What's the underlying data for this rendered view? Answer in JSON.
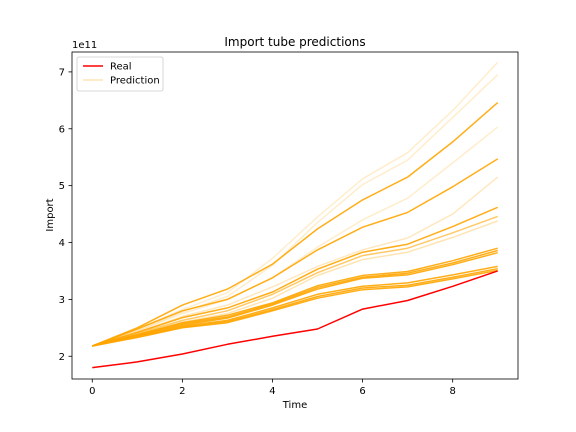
{
  "chart_data": {
    "type": "line",
    "title": "Import tube predictions",
    "xlabel": "Time",
    "ylabel": "Import",
    "y_offset_label": "1e11",
    "x": [
      0,
      1,
      2,
      3,
      4,
      5,
      6,
      7,
      8,
      9
    ],
    "xlim": [
      -0.45,
      9.45
    ],
    "ylim": [
      1.6,
      7.35
    ],
    "xticks": [
      0,
      2,
      4,
      6,
      8
    ],
    "xtick_labels": [
      "0",
      "2",
      "4",
      "6",
      "8"
    ],
    "yticks": [
      2,
      3,
      4,
      5,
      6,
      7
    ],
    "ytick_labels": [
      "2",
      "3",
      "4",
      "5",
      "6",
      "7"
    ],
    "grid": false,
    "legend_position": "top-left",
    "legend": [
      {
        "name": "Real",
        "color": "#ff0000"
      },
      {
        "name": "Prediction",
        "color": "#ffa500"
      }
    ],
    "real": {
      "name": "Real",
      "color": "#ff0000",
      "values": [
        1.8,
        1.9,
        2.04,
        2.21,
        2.35,
        2.48,
        2.83,
        2.98,
        3.23,
        3.5
      ]
    },
    "prediction_color": "#ffa500",
    "predictions": [
      {
        "values": [
          2.18,
          2.48,
          2.82,
          3.12,
          3.72,
          4.45,
          5.12,
          5.58,
          6.32,
          7.17
        ],
        "opacity": 0.2
      },
      {
        "values": [
          2.18,
          2.45,
          2.78,
          3.05,
          3.6,
          4.35,
          5.02,
          5.45,
          6.2,
          6.95
        ],
        "opacity": 0.2
      },
      {
        "values": [
          2.18,
          2.5,
          2.9,
          3.18,
          3.62,
          4.24,
          4.75,
          5.15,
          5.77,
          6.46
        ],
        "opacity": 0.9
      },
      {
        "values": [
          2.18,
          2.44,
          2.75,
          3.0,
          3.38,
          3.92,
          4.4,
          4.78,
          5.4,
          6.03
        ],
        "opacity": 0.2
      },
      {
        "values": [
          2.18,
          2.48,
          2.8,
          3.0,
          3.38,
          3.87,
          4.27,
          4.53,
          4.98,
          5.47
        ],
        "opacity": 0.9
      },
      {
        "values": [
          2.18,
          2.42,
          2.7,
          2.9,
          3.22,
          3.58,
          3.87,
          4.08,
          4.5,
          5.15
        ],
        "opacity": 0.25
      },
      {
        "values": [
          2.18,
          2.42,
          2.68,
          2.85,
          3.13,
          3.53,
          3.83,
          3.97,
          4.28,
          4.62
        ],
        "opacity": 0.9
      },
      {
        "values": [
          2.18,
          2.4,
          2.63,
          2.8,
          3.09,
          3.47,
          3.77,
          3.9,
          4.17,
          4.46
        ],
        "opacity": 0.6
      },
      {
        "values": [
          2.18,
          2.38,
          2.6,
          2.75,
          3.02,
          3.42,
          3.7,
          3.83,
          4.09,
          4.38
        ],
        "opacity": 0.3
      },
      {
        "values": [
          2.18,
          2.38,
          2.59,
          2.72,
          2.94,
          3.24,
          3.42,
          3.49,
          3.68,
          3.9
        ],
        "opacity": 0.9
      },
      {
        "values": [
          2.18,
          2.37,
          2.57,
          2.69,
          2.92,
          3.21,
          3.39,
          3.46,
          3.64,
          3.86
        ],
        "opacity": 0.9
      },
      {
        "values": [
          2.18,
          2.36,
          2.55,
          2.67,
          2.9,
          3.18,
          3.37,
          3.43,
          3.61,
          3.82
        ],
        "opacity": 0.9
      },
      {
        "values": [
          2.18,
          2.35,
          2.53,
          2.63,
          2.85,
          3.09,
          3.23,
          3.29,
          3.43,
          3.58
        ],
        "opacity": 0.9
      },
      {
        "values": [
          2.18,
          2.34,
          2.51,
          2.61,
          2.82,
          3.05,
          3.2,
          3.25,
          3.39,
          3.54
        ],
        "opacity": 0.9
      },
      {
        "values": [
          2.18,
          2.33,
          2.5,
          2.59,
          2.8,
          3.02,
          3.17,
          3.22,
          3.36,
          3.51
        ],
        "opacity": 0.9
      }
    ]
  }
}
